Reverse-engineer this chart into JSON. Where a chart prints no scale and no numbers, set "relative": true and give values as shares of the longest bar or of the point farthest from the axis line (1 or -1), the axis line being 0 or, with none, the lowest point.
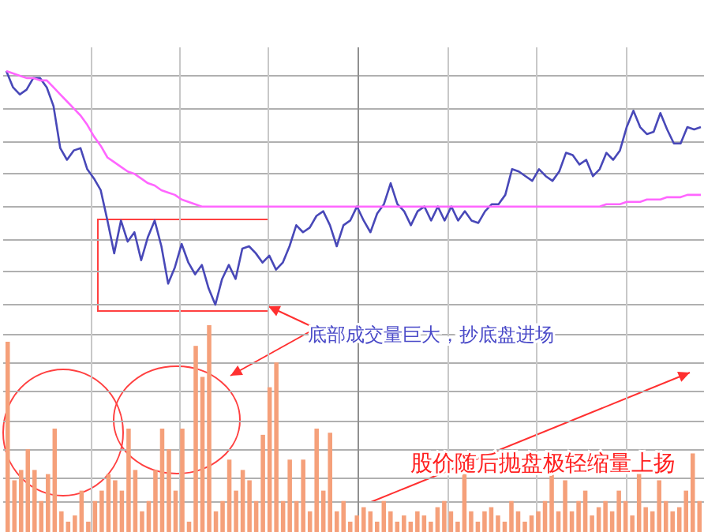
{
  "chart_data": [
    {
      "type": "line",
      "relative": true,
      "grid": true,
      "categories": [
        null,
        null,
        null,
        null,
        null,
        null,
        null,
        null,
        null,
        null,
        null,
        null,
        null,
        null,
        null,
        null,
        null,
        null,
        null,
        null,
        null,
        null,
        null,
        null,
        null,
        null,
        null,
        null,
        null,
        null,
        null,
        null,
        null,
        null,
        null,
        null,
        null,
        null,
        null,
        null,
        null,
        null,
        null,
        null,
        null,
        null,
        null,
        null,
        null,
        null,
        null,
        null,
        null,
        null,
        null,
        null,
        null,
        null,
        null,
        null,
        null,
        null,
        null,
        null,
        null,
        null,
        null,
        null,
        null,
        null,
        null,
        null,
        null,
        null,
        null,
        null,
        null,
        null,
        null,
        null,
        null,
        null,
        null,
        null,
        null,
        null,
        null,
        null,
        null,
        null,
        null,
        null,
        null,
        null,
        null,
        null,
        null,
        null,
        null,
        null,
        null,
        null,
        null,
        null
      ],
      "series": [
        {
          "color": "#4848b8",
          "values": [
            1.0,
            0.93,
            0.9,
            0.92,
            0.97,
            0.97,
            0.93,
            0.85,
            0.67,
            0.62,
            0.66,
            0.67,
            0.58,
            0.54,
            0.49,
            0.36,
            0.22,
            0.36,
            0.27,
            0.31,
            0.19,
            0.29,
            0.36,
            0.25,
            0.09,
            0.16,
            0.26,
            0.18,
            0.13,
            0.17,
            0.07,
            0,
            0.11,
            0.17,
            0.11,
            0.24,
            0.25,
            0.22,
            0.18,
            0.21,
            0.15,
            0.18,
            0.25,
            0.34,
            0.31,
            0.33,
            0.38,
            0.4,
            0.34,
            0.25,
            0.34,
            0.36,
            0.42,
            0.36,
            0.31,
            0.39,
            0.43,
            0.52,
            0.43,
            0.4,
            0.34,
            0.4,
            0.42,
            0.36,
            0.42,
            0.36,
            0.42,
            0.36,
            0.4,
            0.36,
            0.35,
            0.4,
            0.43,
            0.43,
            0.47,
            0.58,
            0.57,
            0.55,
            0.53,
            0.58,
            0.55,
            0.53,
            0.57,
            0.65,
            0.64,
            0.6,
            0.62,
            0.55,
            0.58,
            0.65,
            0.62,
            0.66,
            0.76,
            0.83,
            0.76,
            0.73,
            0.74,
            0.82,
            0.75,
            0.69,
            0.69,
            0.76,
            0.75,
            0.76
          ]
        },
        {
          "color": "#ff66ff",
          "values": [
            1.0,
            0.99,
            0.98,
            0.97,
            0.97,
            0.96,
            0.96,
            0.93,
            0.9,
            0.87,
            0.84,
            0.81,
            0.77,
            0.72,
            0.68,
            0.63,
            0.61,
            0.59,
            0.57,
            0.56,
            0.54,
            0.52,
            0.51,
            0.49,
            0.48,
            0.47,
            0.45,
            0.44,
            0.43,
            0.42,
            0.42,
            0.42,
            0.42,
            0.42,
            0.42,
            0.42,
            0.42,
            0.42,
            0.42,
            0.42,
            0.42,
            0.42,
            0.42,
            0.42,
            0.42,
            0.42,
            0.42,
            0.42,
            0.42,
            0.42,
            0.42,
            0.42,
            0.42,
            0.42,
            0.42,
            0.42,
            0.42,
            0.42,
            0.42,
            0.42,
            0.42,
            0.42,
            0.42,
            0.42,
            0.42,
            0.42,
            0.42,
            0.42,
            0.42,
            0.42,
            0.42,
            0.42,
            0.42,
            0.42,
            0.42,
            0.42,
            0.42,
            0.42,
            0.42,
            0.42,
            0.42,
            0.42,
            0.42,
            0.42,
            0.42,
            0.42,
            0.42,
            0.42,
            0.42,
            0.43,
            0.43,
            0.43,
            0.44,
            0.44,
            0.44,
            0.45,
            0.45,
            0.45,
            0.46,
            0.46,
            0.46,
            0.47,
            0.47,
            0.47
          ]
        }
      ],
      "annotations": [
        "底部成交量巨大，抄底盘进场"
      ]
    },
    {
      "type": "bar",
      "relative": true,
      "grid": true,
      "color": "#f5a07a",
      "categories": [
        null,
        null,
        null,
        null,
        null,
        null,
        null,
        null,
        null,
        null,
        null,
        null,
        null,
        null,
        null,
        null,
        null,
        null,
        null,
        null,
        null,
        null,
        null,
        null,
        null,
        null,
        null,
        null,
        null,
        null,
        null,
        null,
        null,
        null,
        null,
        null,
        null,
        null,
        null,
        null,
        null,
        null,
        null,
        null,
        null,
        null,
        null,
        null,
        null,
        null,
        null,
        null,
        null,
        null,
        null,
        null,
        null,
        null,
        null,
        null,
        null,
        null,
        null,
        null,
        null,
        null,
        null,
        null,
        null,
        null,
        null,
        null,
        null,
        null,
        null,
        null,
        null,
        null,
        null,
        null,
        null,
        null,
        null,
        null,
        null,
        null,
        null,
        null,
        null,
        null,
        null,
        null,
        null,
        null,
        null,
        null,
        null,
        null,
        null,
        null,
        null,
        null,
        null,
        null
      ],
      "values": [
        0.92,
        0.25,
        0.3,
        0.4,
        0.3,
        0.15,
        0.28,
        0.5,
        0.1,
        0.05,
        0.08,
        0.2,
        0.05,
        0.15,
        0.2,
        0.28,
        0.25,
        0.2,
        0.5,
        0.3,
        0.1,
        0.15,
        0.3,
        0.5,
        0.4,
        0.2,
        0.5,
        0.05,
        0.9,
        0.75,
        1.0,
        0.1,
        0.15,
        0.35,
        0.2,
        0.3,
        0.25,
        0.15,
        0.47,
        0.7,
        0.82,
        0.15,
        0.35,
        0.15,
        0.35,
        0.1,
        0.5,
        0.2,
        0.48,
        0.1,
        0.15,
        0.05,
        0.08,
        0.12,
        0.1,
        0.05,
        0.15,
        0.1,
        0.05,
        0.08,
        0.05,
        0.1,
        0.08,
        0.05,
        0.12,
        0.15,
        0.1,
        0.05,
        0.28,
        0.1,
        0.05,
        0.1,
        0.12,
        0.08,
        0.05,
        0.15,
        0.1,
        0.05,
        0.08,
        0.1,
        0.15,
        0.3,
        0.1,
        0.25,
        0.1,
        0.15,
        0.2,
        0.08,
        0.12,
        0.15,
        0.1,
        0.2,
        0.15,
        0.08,
        0.3,
        0.12,
        0.1,
        0.25,
        0.15,
        0.1,
        0.12,
        0.2,
        0.38,
        0.15
      ],
      "annotations": [
        "股价随后抛盘极轻缩量上扬"
      ]
    }
  ]
}
